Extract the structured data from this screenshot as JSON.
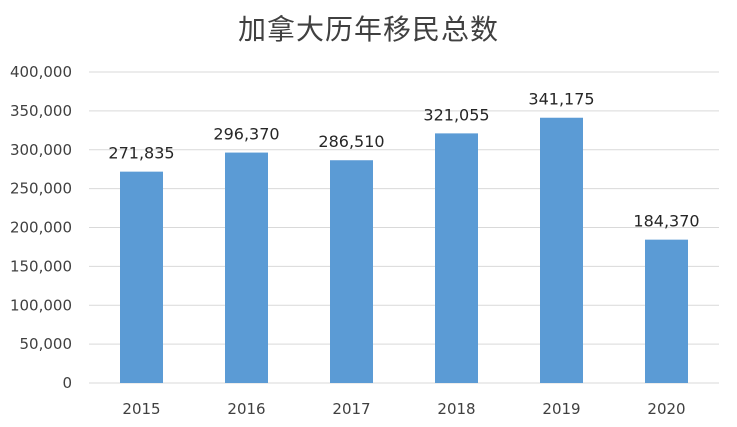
{
  "chart_data": {
    "type": "bar",
    "title": "加拿大历年移民总数",
    "categories": [
      "2015",
      "2016",
      "2017",
      "2018",
      "2019",
      "2020"
    ],
    "values": [
      271835,
      296370,
      286510,
      321055,
      341175,
      184370
    ],
    "data_labels": [
      "271,835",
      "296,370",
      "286,510",
      "321,055",
      "341,175",
      "184,370"
    ],
    "ylim": [
      0,
      400000
    ],
    "yticks": [
      0,
      50000,
      100000,
      150000,
      200000,
      250000,
      300000,
      350000,
      400000
    ],
    "ytick_labels": [
      "0",
      "50,000",
      "100,000",
      "150,000",
      "200,000",
      "250,000",
      "300,000",
      "350,000",
      "400,000"
    ],
    "xlabel": "",
    "ylabel": "",
    "grid": true,
    "legend": "none",
    "bar_color": "#5B9BD5",
    "grid_color": "#D9D9D9"
  }
}
